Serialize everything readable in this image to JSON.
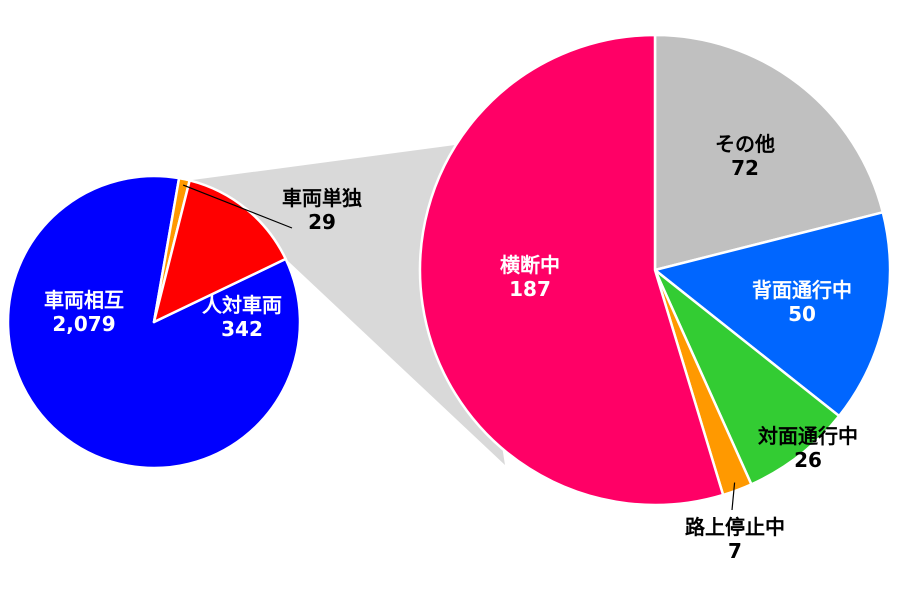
{
  "chart_data": [
    {
      "type": "pie",
      "series": [
        {
          "label": "車両相互",
          "value": 2079,
          "value_text": "2,079",
          "color": "#0000ff",
          "label_color": "#ffffff"
        },
        {
          "label": "車両単独",
          "value": 29,
          "value_text": "29",
          "color": "#ff9900",
          "label_color": "#000000"
        },
        {
          "label": "人対車両",
          "value": 342,
          "value_text": "342",
          "color": "#ff0000",
          "label_color": "#ffffff"
        }
      ]
    },
    {
      "type": "pie",
      "breakdown_of": "人対車両",
      "series": [
        {
          "label": "その他",
          "value": 72,
          "value_text": "72",
          "color": "#c0c0c0",
          "label_color": "#000000"
        },
        {
          "label": "背面通行中",
          "value": 50,
          "value_text": "50",
          "color": "#0066ff",
          "label_color": "#ffffff"
        },
        {
          "label": "対面通行中",
          "value": 26,
          "value_text": "26",
          "color": "#33cc33",
          "label_color": "#000000"
        },
        {
          "label": "路上停止中",
          "value": 7,
          "value_text": "7",
          "color": "#ff9900",
          "label_color": "#000000"
        },
        {
          "label": "横断中",
          "value": 187,
          "value_text": "187",
          "color": "#ff0066",
          "label_color": "#ffffff"
        }
      ]
    }
  ],
  "colors": {
    "connector": "#d9d9d9",
    "slice_border": "#ffffff",
    "leader_line": "#000000"
  }
}
